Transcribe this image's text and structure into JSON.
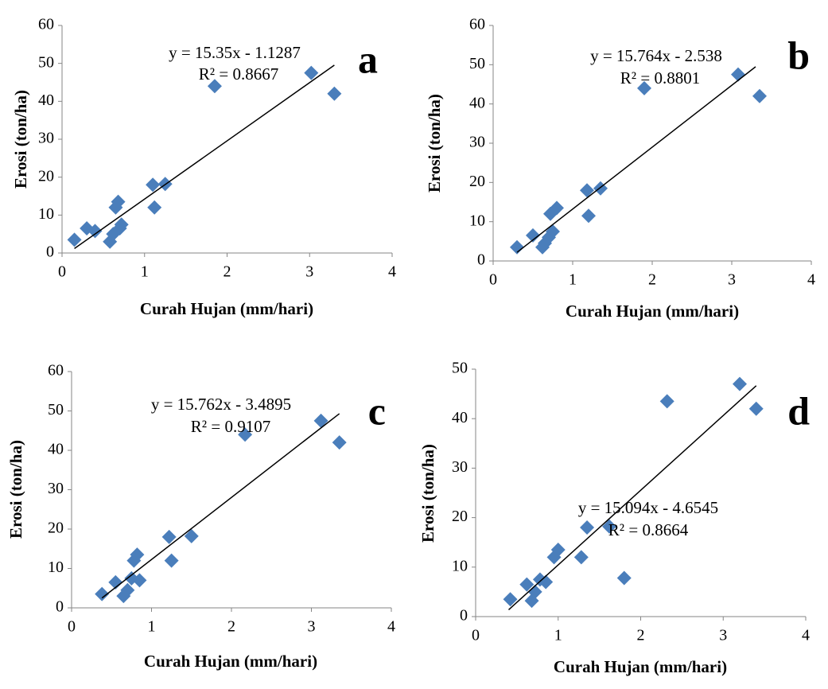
{
  "chart_data": [
    {
      "type": "scatter",
      "panel_label": "a",
      "equation": "y = 15.35x - 1.1287",
      "r2_label": "R² = 0.8667",
      "xlabel": "Curah Hujan (mm/hari)",
      "ylabel": "Erosi (ton/ha)",
      "color": "#4a7ebb",
      "xlim": [
        0,
        4
      ],
      "ylim": [
        0,
        60
      ],
      "xticks": [
        0,
        1,
        2,
        3,
        4
      ],
      "yticks": [
        0,
        10,
        20,
        30,
        40,
        50,
        60
      ],
      "x": [
        0.15,
        0.3,
        0.4,
        0.58,
        0.62,
        0.65,
        0.68,
        0.7,
        0.72,
        1.1,
        1.12,
        1.25,
        1.85,
        3.02,
        3.3
      ],
      "values": [
        3.5,
        6.5,
        5.8,
        3,
        5,
        12,
        13.5,
        6.5,
        7.5,
        18,
        12,
        18.2,
        44,
        47.5,
        42
      ],
      "trendline": {
        "x": [
          0.15,
          3.3
        ],
        "y": [
          1.17,
          49.53
        ]
      }
    },
    {
      "type": "scatter",
      "panel_label": "b",
      "equation": "y = 15.764x - 2.538",
      "r2_label": "R² = 0.8801",
      "xlabel": "Curah Hujan (mm/hari)",
      "ylabel": "Erosi (ton/ha)",
      "color": "#4a7ebb",
      "xlim": [
        0,
        4
      ],
      "ylim": [
        0,
        60
      ],
      "xticks": [
        0,
        1,
        2,
        3,
        4
      ],
      "yticks": [
        0,
        10,
        20,
        30,
        40,
        50,
        60
      ],
      "x": [
        0.3,
        0.5,
        0.62,
        0.65,
        0.7,
        0.72,
        0.75,
        0.8,
        1.18,
        1.2,
        1.35,
        1.9,
        3.08,
        3.35
      ],
      "values": [
        3.5,
        6.5,
        3.5,
        4.5,
        6,
        12,
        7.5,
        13.5,
        18,
        11.5,
        18.5,
        44,
        47.5,
        42
      ],
      "trendline": {
        "x": [
          0.3,
          3.3
        ],
        "y": [
          2.19,
          49.48
        ]
      }
    },
    {
      "type": "scatter",
      "panel_label": "c",
      "equation": "y = 15.762x - 3.4895",
      "r2_label": "R² = 0.9107",
      "xlabel": "Curah Hujan (mm/hari)",
      "ylabel": "Erosi (ton/ha)",
      "color": "#4a7ebb",
      "xlim": [
        0,
        4
      ],
      "ylim": [
        0,
        60
      ],
      "xticks": [
        0,
        1,
        2,
        3,
        4
      ],
      "yticks": [
        0,
        10,
        20,
        30,
        40,
        50,
        60
      ],
      "x": [
        0.38,
        0.55,
        0.65,
        0.7,
        0.75,
        0.78,
        0.82,
        0.85,
        1.22,
        1.25,
        1.5,
        2.17,
        3.12,
        3.35
      ],
      "values": [
        3.5,
        6.5,
        3,
        4.5,
        7.5,
        12,
        13.5,
        7,
        18,
        12,
        18.2,
        44,
        47.5,
        42
      ],
      "trendline": {
        "x": [
          0.38,
          3.35
        ],
        "y": [
          2.5,
          49.31
        ]
      }
    },
    {
      "type": "scatter",
      "panel_label": "d",
      "equation": "y = 15.094x - 4.6545",
      "r2_label": "R² = 0.8664",
      "xlabel": "Curah Hujan (mm/hari)",
      "ylabel": "Erosi (ton/ha)",
      "color": "#4a7ebb",
      "xlim": [
        0,
        4
      ],
      "ylim": [
        0,
        50
      ],
      "xticks": [
        0,
        1,
        2,
        3,
        4
      ],
      "yticks": [
        0,
        10,
        20,
        30,
        40,
        50
      ],
      "x": [
        0.42,
        0.62,
        0.68,
        0.72,
        0.78,
        0.85,
        0.95,
        1.0,
        1.28,
        1.35,
        1.62,
        1.8,
        2.32,
        3.2,
        3.4
      ],
      "values": [
        3.5,
        6.5,
        3.2,
        5,
        7.5,
        7,
        12,
        13.5,
        12,
        18,
        18.2,
        7.8,
        43.5,
        47,
        42
      ],
      "trendline": {
        "x": [
          0.4,
          3.4
        ],
        "y": [
          1.38,
          46.66
        ]
      }
    }
  ]
}
